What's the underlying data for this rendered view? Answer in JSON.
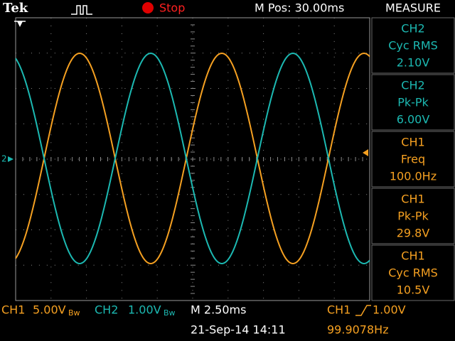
{
  "header": {
    "brand": "Tek",
    "status": "Stop",
    "position": "M Pos: 30.00ms",
    "panel_title": "MEASURE"
  },
  "measurements": [
    {
      "channel": "CH2",
      "label": "Cyc RMS",
      "value": "2.10V"
    },
    {
      "channel": "CH2",
      "label": "Pk-Pk",
      "value": "6.00V"
    },
    {
      "channel": "CH1",
      "label": "Freq",
      "value": "100.0Hz"
    },
    {
      "channel": "CH1",
      "label": "Pk-Pk",
      "value": "29.8V"
    },
    {
      "channel": "CH1",
      "label": "Cyc RMS",
      "value": "10.5V"
    }
  ],
  "footer": {
    "ch1_name": "CH1",
    "ch1_scale": "5.00V",
    "ch2_name": "CH2",
    "ch2_scale": "1.00V",
    "bandwidth": "Bw",
    "timebase": "M 2.50ms",
    "trigger_source": "CH1",
    "trigger_level": "1.00V",
    "date_time": "21-Sep-14 14:11",
    "frequency": "99.9078Hz"
  },
  "markers": {
    "ch2": "2"
  }
}
